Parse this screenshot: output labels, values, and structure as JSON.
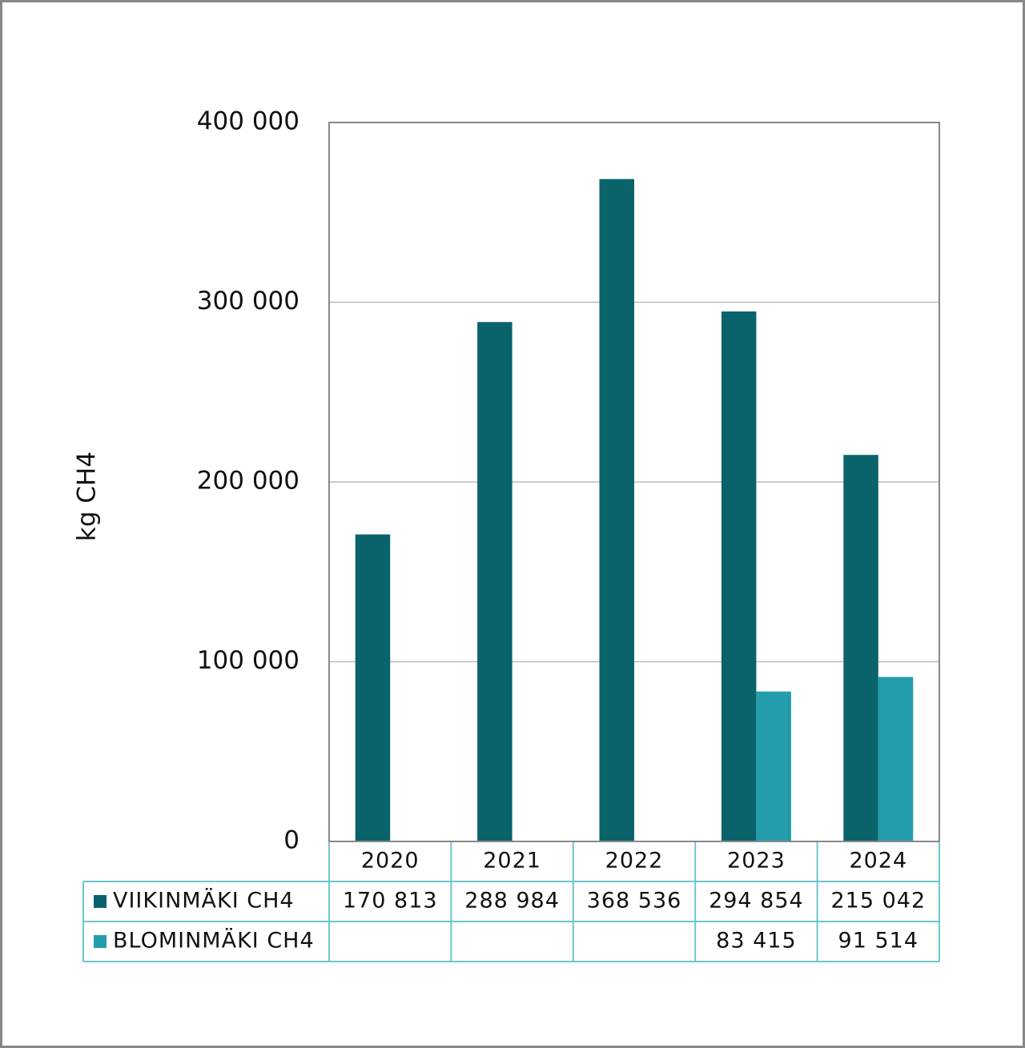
{
  "chart_data": {
    "type": "bar",
    "y_label": "kg CH4",
    "categories": [
      "2020",
      "2021",
      "2022",
      "2023",
      "2024"
    ],
    "series": [
      {
        "name": "VIIKINMÄKI CH4",
        "color": "#0a636b",
        "values": [
          170813,
          288984,
          368536,
          294854,
          215042
        ],
        "value_labels": [
          "170 813",
          "288 984",
          "368 536",
          "294 854",
          "215 042"
        ]
      },
      {
        "name": "BLOMINMÄKI CH4",
        "color": "#239dac",
        "values": [
          null,
          null,
          null,
          83415,
          91514
        ],
        "value_labels": [
          null,
          null,
          null,
          "83 415",
          "91 514"
        ]
      }
    ],
    "ylim": [
      0,
      400000
    ],
    "yticks": [
      0,
      {
        "value": 100000,
        "label": "100 000"
      },
      {
        "value": 200000,
        "label": "200 000"
      },
      {
        "value": 300000,
        "label": "300 000"
      },
      {
        "value": 400000,
        "label": "400 000"
      }
    ],
    "grid": true
  }
}
